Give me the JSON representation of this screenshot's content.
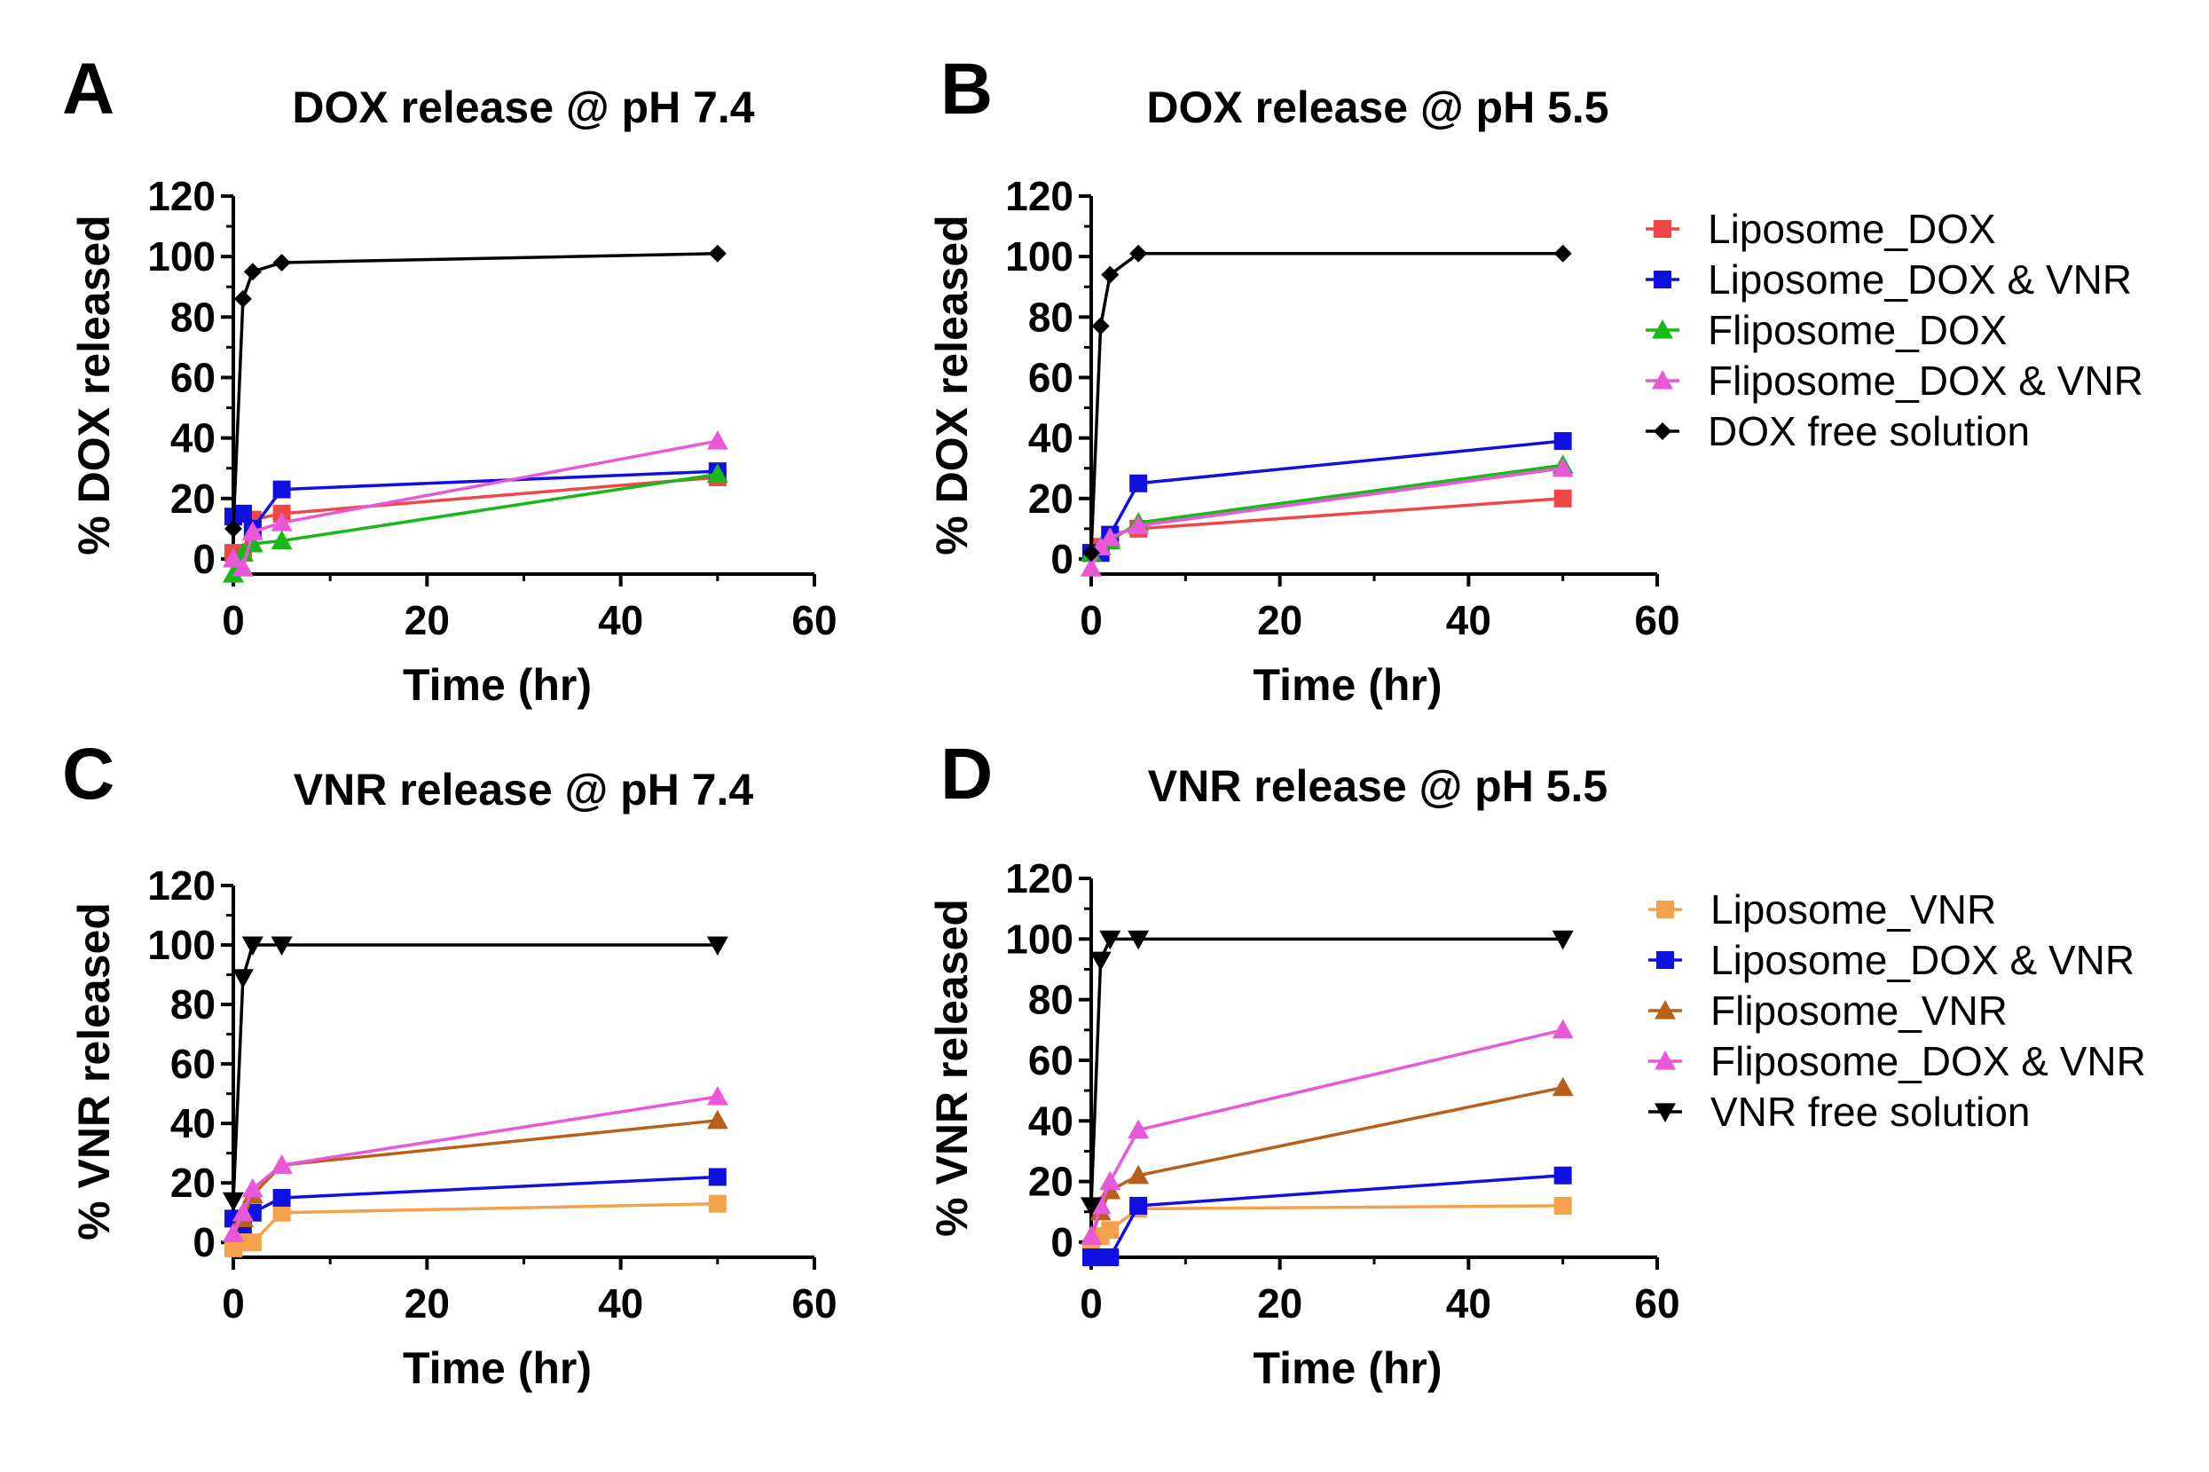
{
  "chart_data": [
    {
      "type": "line",
      "panel_label": "A",
      "title": "DOX release @ pH 7.4",
      "xlabel": "Time (hr)",
      "ylabel": "% DOX released",
      "xlim": [
        0,
        60
      ],
      "ylim": [
        -5,
        120
      ],
      "xticks": [
        "0",
        "20",
        "40",
        "60"
      ],
      "yticks": [
        "0",
        "20",
        "40",
        "60",
        "80",
        "100",
        "120"
      ],
      "series": [
        {
          "name": "Liposome_DOX",
          "color": "#f04646",
          "marker": "square",
          "x": [
            0,
            1,
            2,
            5,
            50
          ],
          "y": [
            2,
            2,
            13,
            15,
            27
          ]
        },
        {
          "name": "Liposome_DOX & VNR",
          "color": "#1010e0",
          "marker": "square",
          "x": [
            0,
            1,
            2,
            5,
            50
          ],
          "y": [
            14,
            15,
            10,
            23,
            29
          ]
        },
        {
          "name": "Fliposome_DOX",
          "color": "#18b818",
          "marker": "triangle-up",
          "x": [
            0,
            1,
            2,
            5,
            50
          ],
          "y": [
            -5,
            2,
            5,
            6,
            28
          ]
        },
        {
          "name": "Fliposome_DOX & VNR",
          "color": "#e858d8",
          "marker": "triangle-up",
          "x": [
            0,
            1,
            2,
            5,
            50
          ],
          "y": [
            0,
            -3,
            9,
            12,
            39
          ]
        },
        {
          "name": "DOX free solution",
          "color": "#000000",
          "marker": "diamond",
          "x": [
            0,
            1,
            2,
            5,
            50
          ],
          "y": [
            10,
            86,
            95,
            98,
            101
          ]
        }
      ]
    },
    {
      "type": "line",
      "panel_label": "B",
      "title": "DOX release @ pH 5.5",
      "xlabel": "Time (hr)",
      "ylabel": "% DOX released",
      "xlim": [
        0,
        60
      ],
      "ylim": [
        -5,
        120
      ],
      "xticks": [
        "0",
        "20",
        "40",
        "60"
      ],
      "yticks": [
        "0",
        "20",
        "40",
        "60",
        "80",
        "100",
        "120"
      ],
      "legend_position": "right",
      "series": [
        {
          "name": "Liposome_DOX",
          "color": "#f04646",
          "marker": "square",
          "x": [
            0,
            1,
            2,
            5,
            50
          ],
          "y": [
            2,
            4,
            8,
            10,
            20
          ]
        },
        {
          "name": "Liposome_DOX & VNR",
          "color": "#1010e0",
          "marker": "square",
          "x": [
            0,
            1,
            2,
            5,
            50
          ],
          "y": [
            2,
            2,
            8,
            25,
            39
          ]
        },
        {
          "name": "Fliposome_DOX",
          "color": "#18b818",
          "marker": "triangle-up",
          "x": [
            0,
            1,
            2,
            5,
            50
          ],
          "y": [
            2,
            4,
            6,
            12,
            31
          ]
        },
        {
          "name": "Fliposome_DOX & VNR",
          "color": "#e858d8",
          "marker": "triangle-up",
          "x": [
            0,
            1,
            2,
            5,
            50
          ],
          "y": [
            -3,
            4,
            7,
            11,
            30
          ]
        },
        {
          "name": "DOX free solution",
          "color": "#000000",
          "marker": "diamond",
          "x": [
            0,
            1,
            2,
            5,
            50
          ],
          "y": [
            2,
            77,
            94,
            101,
            101
          ]
        }
      ]
    },
    {
      "type": "line",
      "panel_label": "C",
      "title": "VNR release @ pH 7.4",
      "xlabel": "Time (hr)",
      "ylabel": "% VNR released",
      "xlim": [
        0,
        60
      ],
      "ylim": [
        -5,
        120
      ],
      "xticks": [
        "0",
        "20",
        "40",
        "60"
      ],
      "yticks": [
        "0",
        "20",
        "40",
        "60",
        "80",
        "100",
        "120"
      ],
      "series": [
        {
          "name": "Liposome_VNR",
          "color": "#f5a04a",
          "marker": "square",
          "x": [
            0,
            1,
            2,
            5,
            50
          ],
          "y": [
            -2,
            0,
            0,
            10,
            13
          ]
        },
        {
          "name": "Liposome_DOX & VNR",
          "color": "#1010e0",
          "marker": "square",
          "x": [
            0,
            1,
            2,
            5,
            50
          ],
          "y": [
            8,
            6,
            10,
            15,
            22
          ]
        },
        {
          "name": "Fliposome_VNR",
          "color": "#b8601a",
          "marker": "triangle-up",
          "x": [
            0,
            1,
            2,
            5,
            50
          ],
          "y": [
            3,
            8,
            16,
            26,
            41
          ]
        },
        {
          "name": "Fliposome_DOX & VNR",
          "color": "#e858d8",
          "marker": "triangle-up",
          "x": [
            0,
            1,
            2,
            5,
            50
          ],
          "y": [
            3,
            10,
            18,
            26,
            49
          ]
        },
        {
          "name": "VNR free solution",
          "color": "#000000",
          "marker": "triangle-down",
          "x": [
            0,
            1,
            2,
            5,
            50
          ],
          "y": [
            14,
            89,
            100,
            100,
            100
          ]
        }
      ]
    },
    {
      "type": "line",
      "panel_label": "D",
      "title": "VNR release @ pH 5.5",
      "xlabel": "Time (hr)",
      "ylabel": "% VNR released",
      "xlim": [
        0,
        60
      ],
      "ylim": [
        -5,
        120
      ],
      "xticks": [
        "0",
        "20",
        "40",
        "60"
      ],
      "yticks": [
        "0",
        "20",
        "40",
        "60",
        "80",
        "100",
        "120"
      ],
      "legend_position": "right",
      "series": [
        {
          "name": "Liposome_VNR",
          "color": "#f5a04a",
          "marker": "square",
          "x": [
            0,
            1,
            2,
            5,
            50
          ],
          "y": [
            -2,
            2,
            4,
            11,
            12
          ]
        },
        {
          "name": "Liposome_DOX & VNR",
          "color": "#1010e0",
          "marker": "square",
          "x": [
            0,
            1,
            2,
            5,
            50
          ],
          "y": [
            -5,
            -5,
            -5,
            12,
            22
          ]
        },
        {
          "name": "Fliposome_VNR",
          "color": "#b8601a",
          "marker": "triangle-up",
          "x": [
            0,
            1,
            2,
            5,
            50
          ],
          "y": [
            2,
            10,
            17,
            22,
            51
          ]
        },
        {
          "name": "Fliposome_DOX & VNR",
          "color": "#e858d8",
          "marker": "triangle-up",
          "x": [
            0,
            1,
            2,
            5,
            50
          ],
          "y": [
            2,
            12,
            20,
            37,
            70
          ]
        },
        {
          "name": "VNR free solution",
          "color": "#000000",
          "marker": "triangle-down",
          "x": [
            0,
            1,
            2,
            5,
            50
          ],
          "y": [
            12,
            93,
            100,
            100,
            100
          ]
        }
      ]
    }
  ]
}
